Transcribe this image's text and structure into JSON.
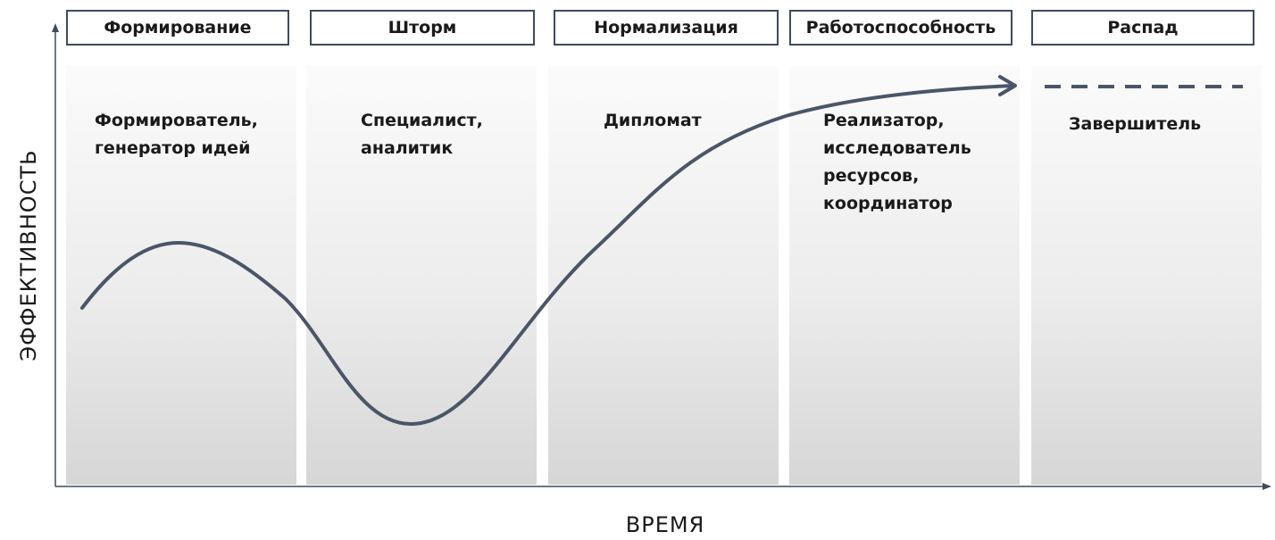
{
  "diagram": {
    "y_axis_label": "ЭФФЕКТИВНОСТЬ",
    "x_axis_label": "ВРЕМЯ",
    "stages": [
      {
        "title": "Формирование",
        "roles": "Формирователь,\nгенератор идей"
      },
      {
        "title": "Шторм",
        "roles": "Специалист,\nаналитик"
      },
      {
        "title": "Нормализация",
        "roles": "Дипломат"
      },
      {
        "title": "Работоспособность",
        "roles": "Реализатор,\nисследователь\nресурсов,\nкоординатор"
      },
      {
        "title": "Распад",
        "roles": "Завершитель"
      }
    ]
  },
  "colors": {
    "curve": "#4a5568",
    "border": "#3f4a5c",
    "axis": "#3f4a5c"
  }
}
